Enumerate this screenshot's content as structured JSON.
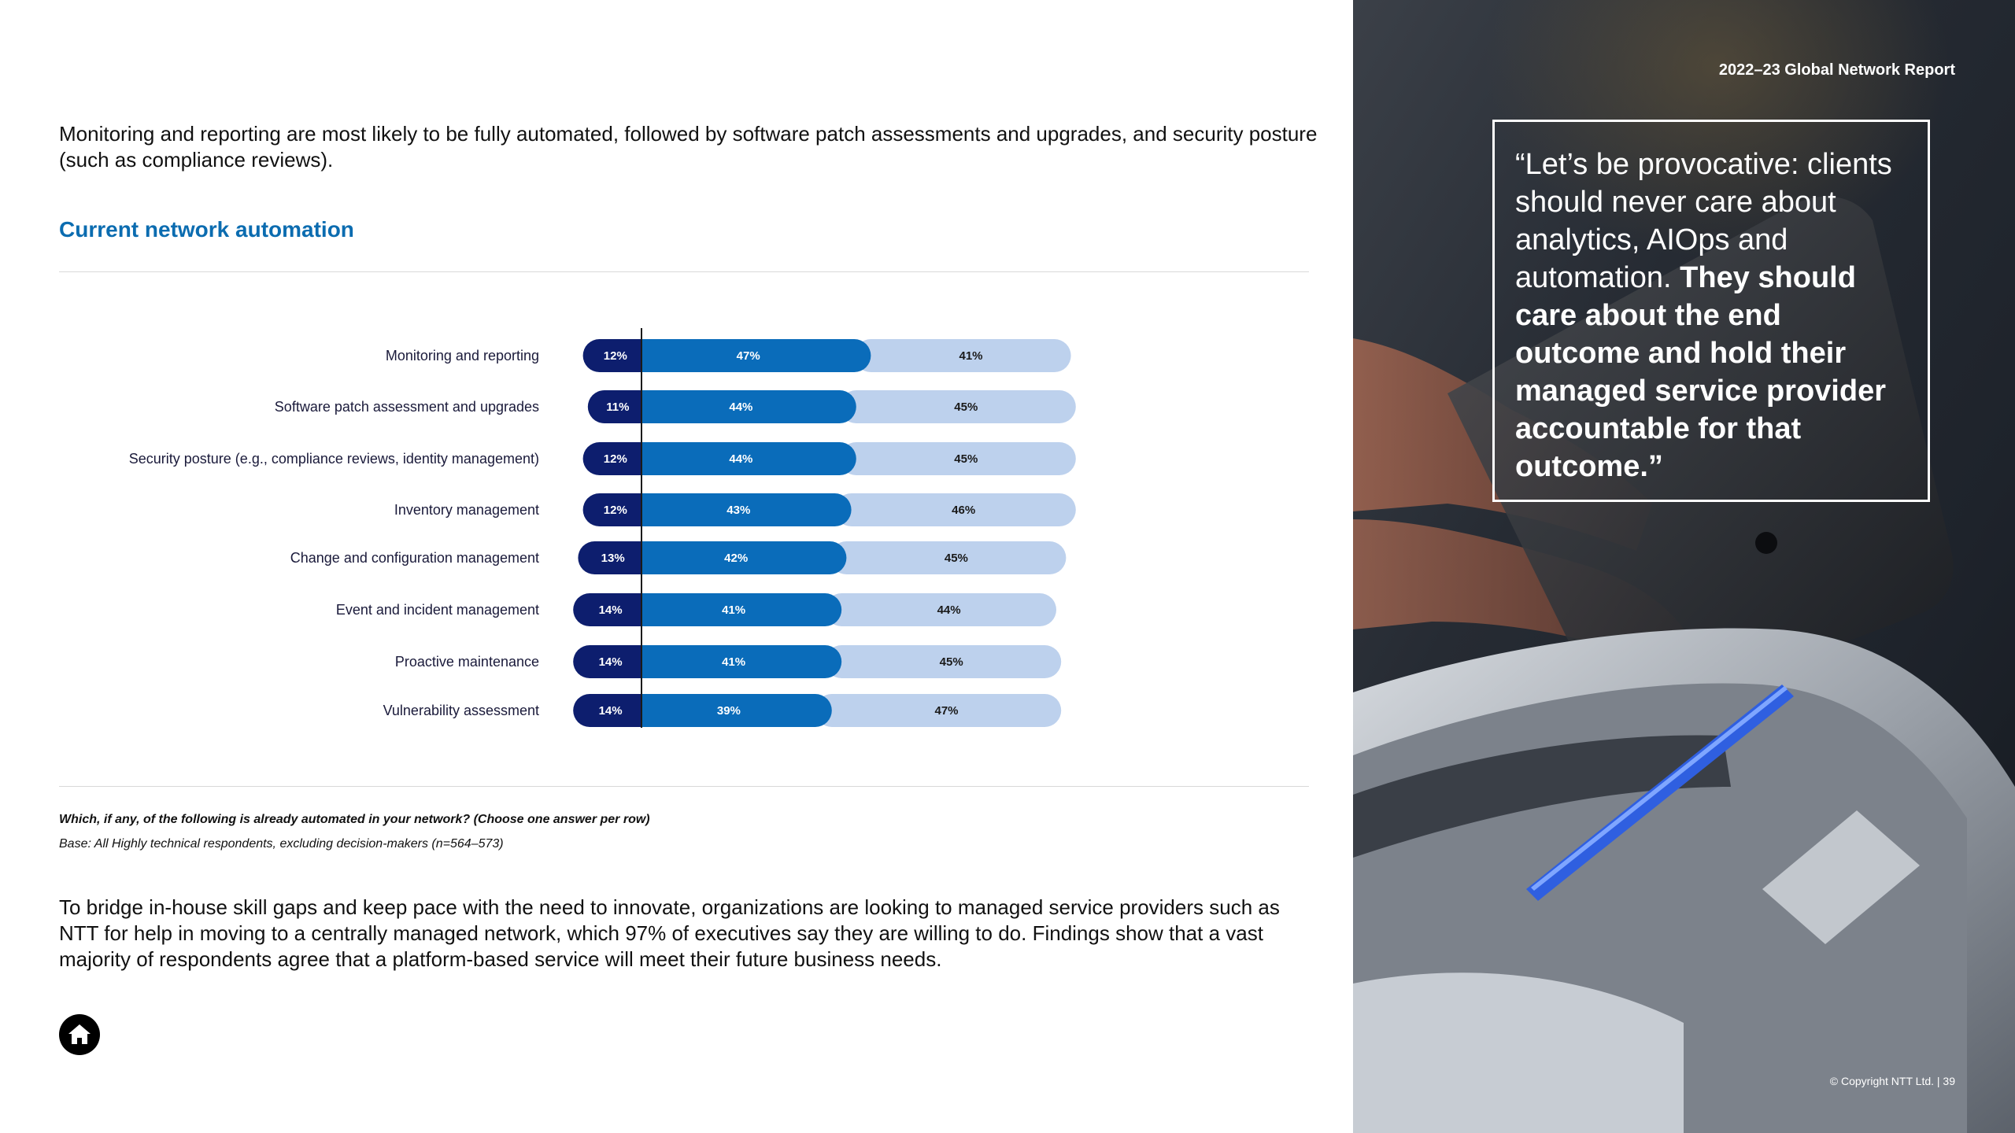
{
  "intro": "Monitoring and reporting are most likely to be fully automated, followed by software patch assessments and upgrades, and security posture (such as compliance reviews).",
  "chart_title": "Current network automation",
  "chart_data": {
    "type": "bar",
    "orientation": "horizontal-stacked-diverging",
    "categories": [
      "Monitoring and reporting",
      "Software patch assessment and upgrades",
      "Security posture (e.g., compliance reviews, identity management)",
      "Inventory management",
      "Change and configuration management",
      "Event and incident management",
      "Proactive maintenance",
      "Vulnerability assessment"
    ],
    "series": [
      {
        "name": "segment-1",
        "color": "#0d1e6e",
        "text_color": "#ffffff",
        "values": [
          12,
          11,
          12,
          12,
          13,
          14,
          14,
          14
        ]
      },
      {
        "name": "segment-2",
        "color": "#0a6cba",
        "text_color": "#ffffff",
        "values": [
          47,
          44,
          44,
          43,
          42,
          41,
          41,
          39
        ]
      },
      {
        "name": "segment-3",
        "color": "#bdd1ed",
        "text_color": "#1a1a1a",
        "values": [
          41,
          45,
          45,
          46,
          45,
          44,
          45,
          47
        ]
      }
    ],
    "value_suffix": "%",
    "title": "Current network automation",
    "xlabel": "",
    "ylabel": ""
  },
  "question": "Which, if any, of the following is already automated in your network?  (Choose one answer per row)",
  "base": "Base: All Highly technical respondents, excluding decision-makers (n=564–573)",
  "body": "To bridge in-house skill gaps and keep pace with the need to innovate, organizations are looking to managed service providers such as NTT for help in moving to a centrally managed network, which 97% of executives say they are willing to do. Findings show that a vast majority of respondents agree that a platform-based service will meet their future business needs.",
  "report_title": "2022–23 Global Network Report",
  "quote": {
    "light": "“Let’s be provocative: clients should never care about analytics, AIOps and automation.",
    "bold": "They should care about the end outcome and hold their managed service provider accountable for that outcome.”"
  },
  "copyright": "© Copyright NTT Ltd. | 39",
  "icons": {
    "home": "home-icon"
  }
}
